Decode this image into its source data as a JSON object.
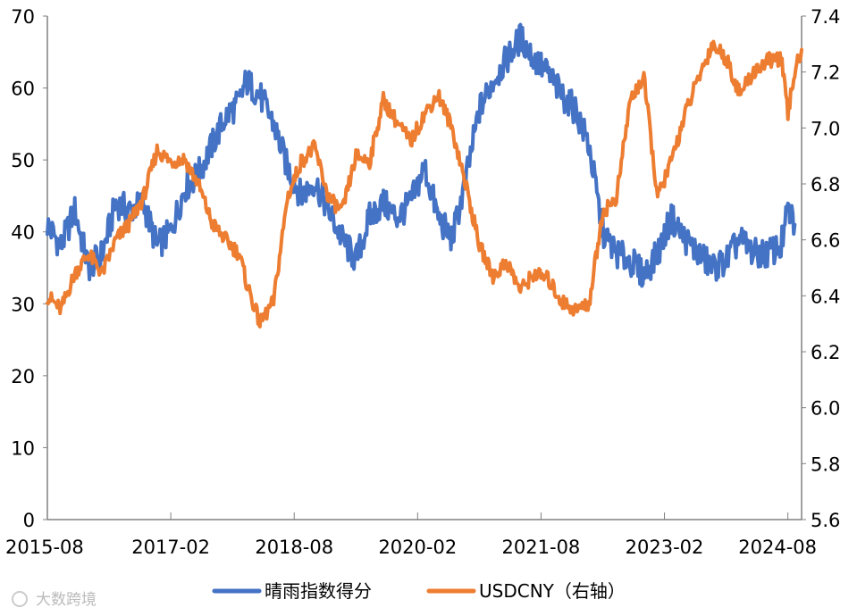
{
  "chart_data": {
    "type": "line",
    "title": "",
    "xlabel": "",
    "ylabel": "",
    "x_tick_labels": [
      "2015-08",
      "2017-02",
      "2018-08",
      "2020-02",
      "2021-08",
      "2023-02",
      "2024-08"
    ],
    "left_axis": {
      "ylim": [
        0,
        70
      ],
      "ticks": [
        "0",
        "10",
        "20",
        "30",
        "40",
        "50",
        "60",
        "70"
      ]
    },
    "right_axis": {
      "ylim": [
        5.6,
        7.4
      ],
      "ticks": [
        "5.6",
        "5.8",
        "6.0",
        "6.2",
        "6.4",
        "6.6",
        "6.8",
        "7.0",
        "7.2",
        "7.4"
      ]
    },
    "grid": false,
    "legend_position": "bottom",
    "series": [
      {
        "name": "晴雨指数得分",
        "axis": "left",
        "color": "#4472C4",
        "points": [
          [
            "2015-08",
            41
          ],
          [
            "2015-10",
            38
          ],
          [
            "2015-12",
            43
          ],
          [
            "2016-02",
            35
          ],
          [
            "2016-04",
            37
          ],
          [
            "2016-06",
            44
          ],
          [
            "2016-08",
            43
          ],
          [
            "2016-10",
            44
          ],
          [
            "2016-12",
            38
          ],
          [
            "2017-02",
            40
          ],
          [
            "2017-04",
            46
          ],
          [
            "2017-06",
            48
          ],
          [
            "2017-08",
            52
          ],
          [
            "2017-10",
            56
          ],
          [
            "2017-12",
            58
          ],
          [
            "2018-01",
            61
          ],
          [
            "2018-03",
            59
          ],
          [
            "2018-05",
            55
          ],
          [
            "2018-07",
            49
          ],
          [
            "2018-09",
            45
          ],
          [
            "2018-11",
            47
          ],
          [
            "2019-01",
            43
          ],
          [
            "2019-03",
            39
          ],
          [
            "2019-05",
            36
          ],
          [
            "2019-07",
            42
          ],
          [
            "2019-09",
            44
          ],
          [
            "2019-11",
            42
          ],
          [
            "2020-01",
            44
          ],
          [
            "2020-03",
            49
          ],
          [
            "2020-05",
            42
          ],
          [
            "2020-07",
            39
          ],
          [
            "2020-09",
            47
          ],
          [
            "2020-11",
            57
          ],
          [
            "2021-01",
            61
          ],
          [
            "2021-03",
            64
          ],
          [
            "2021-05",
            67
          ],
          [
            "2021-07",
            64
          ],
          [
            "2021-09",
            62
          ],
          [
            "2021-11",
            59
          ],
          [
            "2022-01",
            57
          ],
          [
            "2022-03",
            52
          ],
          [
            "2022-05",
            40
          ],
          [
            "2022-07",
            37
          ],
          [
            "2022-09",
            36
          ],
          [
            "2022-11",
            34
          ],
          [
            "2023-01",
            37
          ],
          [
            "2023-03",
            42
          ],
          [
            "2023-05",
            39
          ],
          [
            "2023-07",
            37
          ],
          [
            "2023-09",
            35
          ],
          [
            "2023-11",
            36
          ],
          [
            "2024-01",
            39
          ],
          [
            "2024-03",
            37
          ],
          [
            "2024-05",
            37
          ],
          [
            "2024-07",
            38
          ],
          [
            "2024-08",
            43
          ],
          [
            "2024-09",
            41
          ]
        ]
      },
      {
        "name": "USDCNY（右轴）",
        "axis": "right",
        "color": "#ED7D31",
        "points": [
          [
            "2015-08",
            6.4
          ],
          [
            "2015-10",
            6.35
          ],
          [
            "2015-12",
            6.48
          ],
          [
            "2016-02",
            6.55
          ],
          [
            "2016-04",
            6.48
          ],
          [
            "2016-06",
            6.6
          ],
          [
            "2016-08",
            6.66
          ],
          [
            "2016-10",
            6.75
          ],
          [
            "2016-12",
            6.92
          ],
          [
            "2017-02",
            6.88
          ],
          [
            "2017-04",
            6.89
          ],
          [
            "2017-06",
            6.8
          ],
          [
            "2017-08",
            6.66
          ],
          [
            "2017-10",
            6.6
          ],
          [
            "2017-12",
            6.55
          ],
          [
            "2018-01",
            6.45
          ],
          [
            "2018-03",
            6.3
          ],
          [
            "2018-05",
            6.38
          ],
          [
            "2018-07",
            6.75
          ],
          [
            "2018-09",
            6.88
          ],
          [
            "2018-11",
            6.93
          ],
          [
            "2019-01",
            6.75
          ],
          [
            "2019-03",
            6.7
          ],
          [
            "2019-05",
            6.9
          ],
          [
            "2019-07",
            6.88
          ],
          [
            "2019-09",
            7.1
          ],
          [
            "2019-11",
            7.02
          ],
          [
            "2020-01",
            6.95
          ],
          [
            "2020-03",
            7.05
          ],
          [
            "2020-05",
            7.12
          ],
          [
            "2020-07",
            7.0
          ],
          [
            "2020-09",
            6.8
          ],
          [
            "2020-11",
            6.58
          ],
          [
            "2021-01",
            6.47
          ],
          [
            "2021-03",
            6.52
          ],
          [
            "2021-05",
            6.42
          ],
          [
            "2021-07",
            6.48
          ],
          [
            "2021-09",
            6.46
          ],
          [
            "2021-11",
            6.38
          ],
          [
            "2022-01",
            6.35
          ],
          [
            "2022-03",
            6.37
          ],
          [
            "2022-05",
            6.7
          ],
          [
            "2022-07",
            6.75
          ],
          [
            "2022-09",
            7.1
          ],
          [
            "2022-11",
            7.18
          ],
          [
            "2023-01",
            6.75
          ],
          [
            "2023-03",
            6.88
          ],
          [
            "2023-05",
            7.05
          ],
          [
            "2023-07",
            7.18
          ],
          [
            "2023-09",
            7.3
          ],
          [
            "2023-11",
            7.25
          ],
          [
            "2024-01",
            7.12
          ],
          [
            "2024-03",
            7.2
          ],
          [
            "2024-05",
            7.24
          ],
          [
            "2024-07",
            7.25
          ],
          [
            "2024-08",
            7.05
          ],
          [
            "2024-09",
            7.2
          ],
          [
            "2024-10",
            7.28
          ]
        ]
      }
    ]
  },
  "watermark_text": "大数跨境"
}
